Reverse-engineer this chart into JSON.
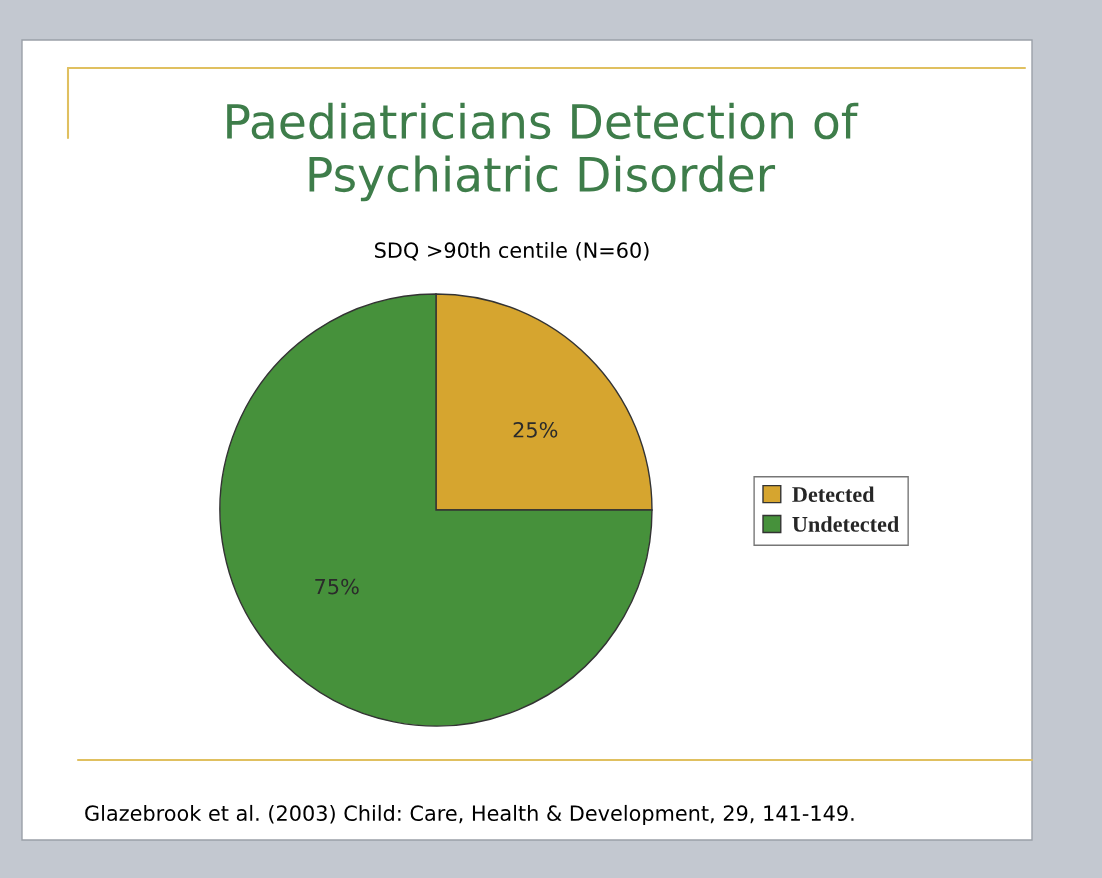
{
  "chart_data": {
    "type": "pie",
    "title": "Paediatricians Detection of\nPsychiatric Disorder",
    "subtitle": "SDQ >90th centile (N=60)",
    "categories": [
      "Detected",
      "Undetected"
    ],
    "values": [
      25,
      75
    ],
    "colors": [
      "#d6a52f",
      "#46913b"
    ],
    "value_labels": [
      "25%",
      "75%"
    ],
    "legend": "right",
    "annotations": [
      "Glazebrook et al. (2003) Child: Care, Health & Development, 29, 141-149."
    ]
  }
}
